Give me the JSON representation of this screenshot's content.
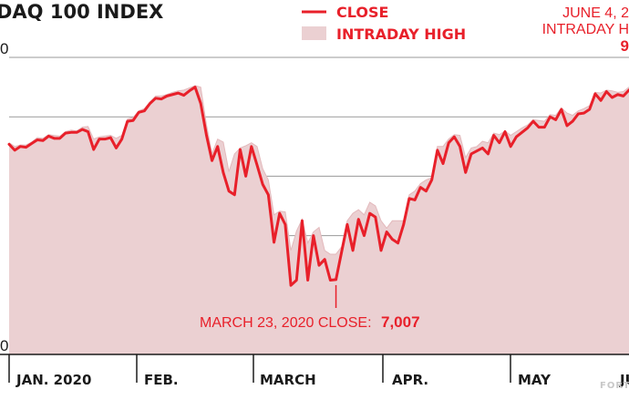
{
  "chart_data": {
    "type": "line",
    "title": "DAQ 100 INDEX",
    "legend": {
      "position": "top",
      "entries": [
        {
          "label": "CLOSE",
          "style": "line",
          "color": "#e8202a"
        },
        {
          "label": "INTRADAY HIGH",
          "style": "area",
          "color": "#ebd0d2"
        }
      ]
    },
    "x_ticks": [
      "JAN. 2020",
      "FEB.",
      "MARCH",
      "APR.",
      "MAY",
      "JU"
    ],
    "y_ticks": [
      "0",
      "",
      "",
      "",
      "",
      "0"
    ],
    "ylim": [
      6000,
      10000
    ],
    "grid": true,
    "series": [
      {
        "name": "CLOSE",
        "values": [
          8830,
          8750,
          8800,
          8790,
          8840,
          8890,
          8880,
          8940,
          8910,
          8910,
          8980,
          8990,
          8990,
          9030,
          9000,
          8760,
          8900,
          8900,
          8920,
          8780,
          8900,
          9140,
          9150,
          9260,
          9280,
          9380,
          9450,
          9440,
          9480,
          9500,
          9520,
          9490,
          9550,
          9600,
          9380,
          8960,
          8610,
          8800,
          8450,
          8200,
          8150,
          8760,
          8400,
          8800,
          8550,
          8290,
          8150,
          7510,
          7900,
          7750,
          6930,
          7000,
          7800,
          7000,
          7600,
          7200,
          7280,
          7000,
          7007,
          7380,
          7750,
          7400,
          7820,
          7600,
          7900,
          7850,
          7400,
          7650,
          7550,
          7500,
          7750,
          8100,
          8080,
          8250,
          8200,
          8350,
          8750,
          8570,
          8850,
          8930,
          8800,
          8450,
          8700,
          8740,
          8780,
          8700,
          8950,
          8850,
          9000,
          8800,
          8930,
          8990,
          9050,
          9140,
          9060,
          9060,
          9200,
          9160,
          9300,
          9080,
          9140,
          9240,
          9250,
          9300,
          9510,
          9420,
          9540,
          9460,
          9500,
          9480,
          9560
        ]
      },
      {
        "name": "INTRADAY HIGH",
        "values": [
          8850,
          8800,
          8820,
          8820,
          8860,
          8920,
          8910,
          8960,
          8950,
          8940,
          9000,
          9020,
          9010,
          9060,
          9070,
          8900,
          8930,
          8940,
          8950,
          8910,
          8950,
          9170,
          9190,
          9280,
          9310,
          9400,
          9480,
          9480,
          9500,
          9530,
          9550,
          9560,
          9590,
          9620,
          9600,
          9100,
          8700,
          8900,
          8860,
          8460,
          8700,
          8780,
          8810,
          8850,
          8800,
          8500,
          8350,
          7880,
          7930,
          7920,
          7400,
          7660,
          7820,
          7500,
          7650,
          7710,
          7400,
          7350,
          7350,
          7450,
          7800,
          7900,
          7950,
          7880,
          8050,
          8000,
          7800,
          7700,
          7800,
          7800,
          7800,
          8150,
          8200,
          8300,
          8350,
          8380,
          8800,
          8800,
          8900,
          8960,
          8950,
          8650,
          8780,
          8800,
          8870,
          8850,
          8980,
          8960,
          9010,
          8950,
          9000,
          9050,
          9090,
          9160,
          9150,
          9140,
          9230,
          9220,
          9320,
          9250,
          9220,
          9280,
          9310,
          9350,
          9530,
          9520,
          9560,
          9550,
          9530,
          9540,
          9600
        ]
      }
    ],
    "annotations": [
      {
        "label": "MARCH 23, 2020 CLOSE:",
        "value_text": "7,007",
        "x_index": 58,
        "value": 7007
      },
      {
        "lines": [
          "JUNE 4, 2",
          "INTRADAY H",
          "9"
        ]
      }
    ],
    "source": "FORT"
  }
}
